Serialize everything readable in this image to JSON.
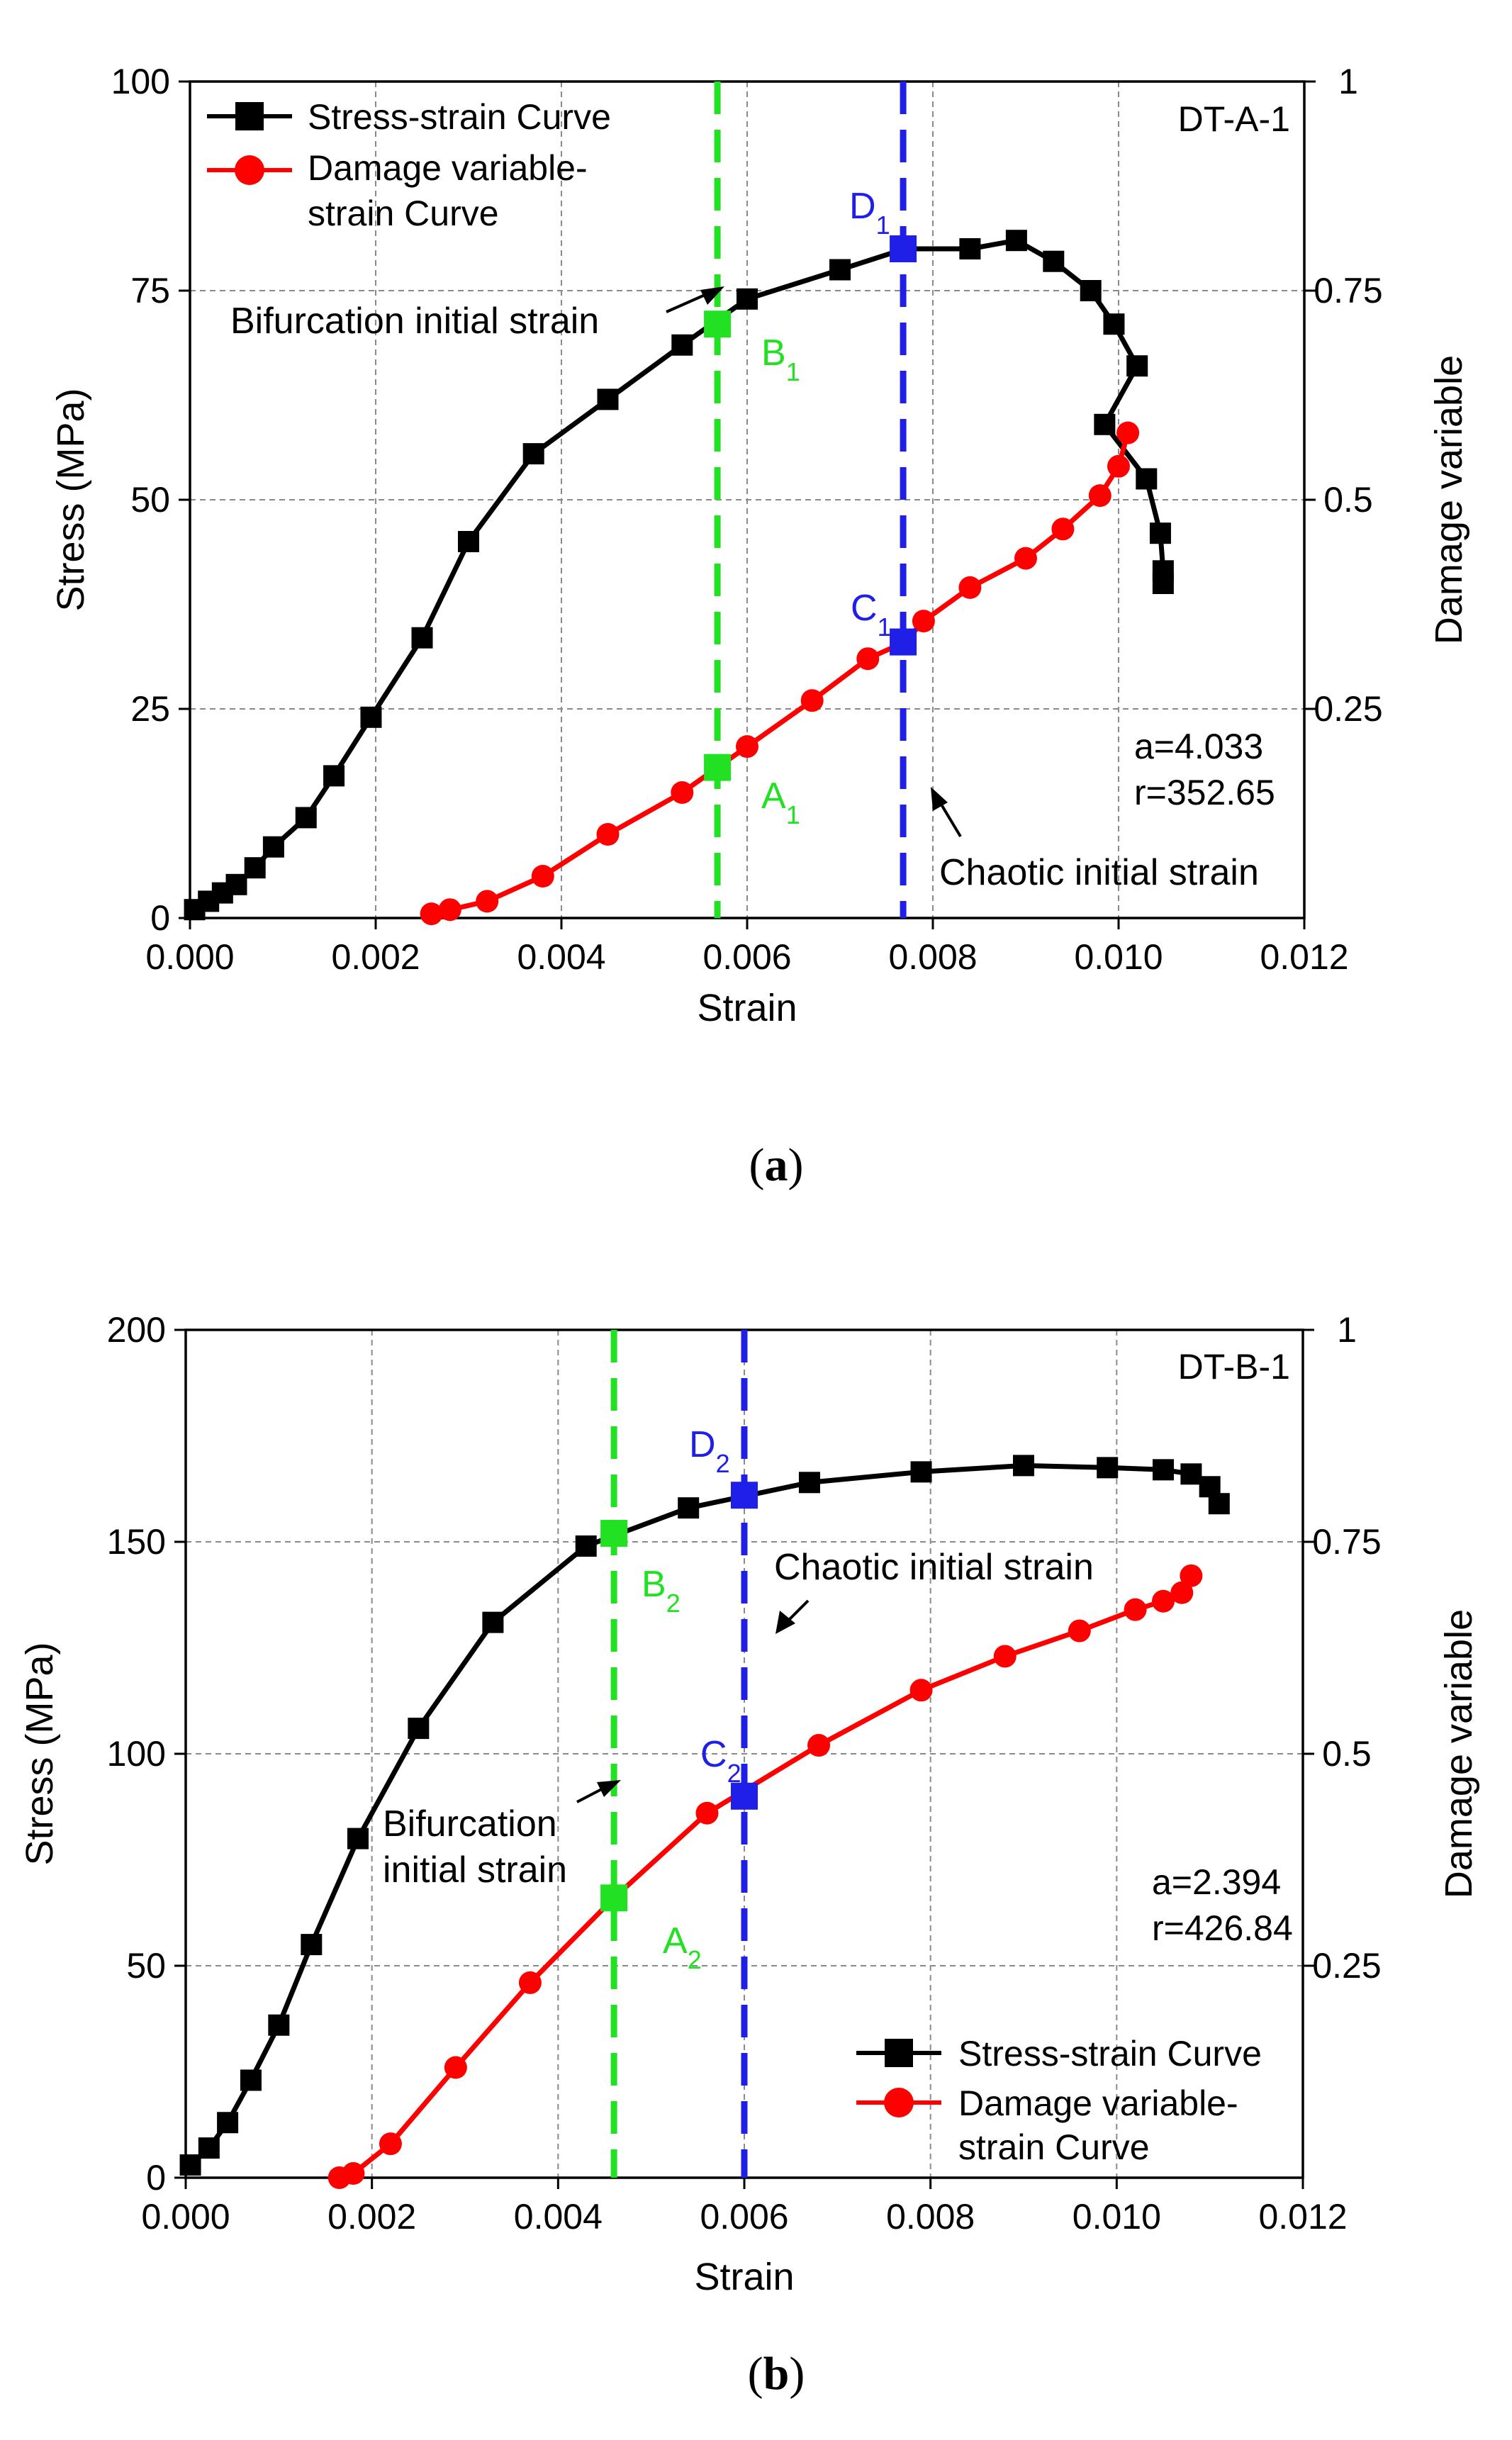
{
  "colors": {
    "stress": "#000000",
    "damage": "#ff0000",
    "bifurcation": "#22e022",
    "chaotic": "#1f1fe8"
  },
  "chart_data": [
    {
      "type": "line",
      "id": "a",
      "caption": "a",
      "label": "DT-A-1",
      "xlabel": "Strain",
      "ylabel": "Stress (MPa)",
      "y2label": "Damage variable",
      "xlim": [
        0,
        0.012
      ],
      "ylim": [
        0,
        100
      ],
      "y2lim": [
        0,
        1
      ],
      "xticks": [
        "0.000",
        "0.002",
        "0.004",
        "0.006",
        "0.008",
        "0.010",
        "0.012"
      ],
      "yticks": [
        "0",
        "25",
        "50",
        "75",
        "100"
      ],
      "y2ticks": [
        "0.25",
        "0.5",
        "0.75",
        "1"
      ],
      "legend_position": "top-left",
      "legend": {
        "stress": "Stress-strain Curve",
        "damage_line1": "Damage variable-",
        "damage_line2": "strain Curve"
      },
      "params": {
        "a": "a=4.033",
        "r": "r=352.65"
      },
      "annotations": {
        "bifurcation": "Bifurcation initial strain",
        "chaotic": "Chaotic initial strain",
        "A": "A",
        "A_sub": "1",
        "B": "B",
        "B_sub": "1",
        "C": "C",
        "C_sub": "1",
        "D": "D",
        "D_sub": "1"
      },
      "vlines": {
        "bifurcation": 0.00568,
        "chaotic": 0.00768
      },
      "points": {
        "A": [
          0.00568,
          0.18
        ],
        "B": [
          0.00568,
          71
        ],
        "C": [
          0.00768,
          0.33
        ],
        "D": [
          0.00768,
          80
        ]
      },
      "series": [
        {
          "name": "Stress-strain Curve",
          "axis": "left",
          "x": [
            5e-05,
            0.0002,
            0.00035,
            0.0005,
            0.0007,
            0.0009,
            0.00125,
            0.00155,
            0.00195,
            0.0025,
            0.003,
            0.0037,
            0.0045,
            0.0053,
            0.006,
            0.007,
            0.0077,
            0.0084,
            0.0089,
            0.0093,
            0.0097,
            0.00995,
            0.0102,
            0.00985,
            0.0103,
            0.01045,
            0.01048,
            0.01048
          ],
          "y": [
            1,
            2,
            3,
            4,
            6,
            8.5,
            12,
            17,
            24,
            33.5,
            45,
            55.5,
            62,
            68.5,
            74,
            77.5,
            80,
            80,
            81,
            78.5,
            75,
            71,
            66,
            59,
            52.5,
            46,
            41.5,
            40
          ]
        },
        {
          "name": "Damage variable-strain Curve",
          "axis": "right",
          "x": [
            0.0026,
            0.0028,
            0.0032,
            0.0038,
            0.0045,
            0.0053,
            0.006,
            0.0067,
            0.0073,
            0.0077,
            0.0079,
            0.0084,
            0.009,
            0.0094,
            0.0098,
            0.01,
            0.0101
          ],
          "y": [
            0.005,
            0.01,
            0.02,
            0.05,
            0.1,
            0.15,
            0.205,
            0.26,
            0.31,
            0.33,
            0.355,
            0.395,
            0.43,
            0.465,
            0.505,
            0.54,
            0.58
          ]
        }
      ]
    },
    {
      "type": "line",
      "id": "b",
      "caption": "b",
      "label": "DT-B-1",
      "xlabel": "Strain",
      "ylabel": "Stress (MPa)",
      "y2label": "Damage variable",
      "xlim": [
        0,
        0.012
      ],
      "ylim": [
        0,
        200
      ],
      "y2lim": [
        0,
        1
      ],
      "xticks": [
        "0.000",
        "0.002",
        "0.004",
        "0.006",
        "0.008",
        "0.010",
        "0.012"
      ],
      "yticks": [
        "0",
        "50",
        "100",
        "150",
        "200"
      ],
      "y2ticks": [
        "0.25",
        "0.5",
        "0.75",
        "1"
      ],
      "legend_position": "bottom-right",
      "legend": {
        "stress": "Stress-strain Curve",
        "damage_line1": "Damage variable-",
        "damage_line2": "strain Curve"
      },
      "params": {
        "a": "a=2.394",
        "r": "r=426.84"
      },
      "annotations": {
        "bifurcation_line1": "Bifurcation",
        "bifurcation_line2": "initial strain",
        "chaotic": "Chaotic initial strain",
        "A": "A",
        "A_sub": "2",
        "B": "B",
        "B_sub": "2",
        "C": "C",
        "C_sub": "2",
        "D": "D",
        "D_sub": "2"
      },
      "vlines": {
        "bifurcation": 0.0046,
        "chaotic": 0.006
      },
      "points": {
        "A": [
          0.0046,
          0.33
        ],
        "B": [
          0.0046,
          152
        ],
        "C": [
          0.006,
          0.45
        ],
        "D": [
          0.006,
          161
        ]
      },
      "series": [
        {
          "name": "Stress-strain Curve",
          "axis": "left",
          "x": [
            5e-05,
            0.00025,
            0.00045,
            0.0007,
            0.001,
            0.00135,
            0.00185,
            0.0025,
            0.0033,
            0.0043,
            0.0054,
            0.0067,
            0.0079,
            0.009,
            0.0099,
            0.0105,
            0.0108,
            0.011,
            0.0111
          ],
          "y": [
            3,
            7,
            13,
            23,
            36,
            55,
            80,
            106,
            131,
            149,
            158,
            164,
            166.5,
            168,
            167.5,
            167,
            166,
            163,
            159
          ]
        },
        {
          "name": "Damage variable-strain Curve",
          "axis": "right",
          "x": [
            0.00165,
            0.0018,
            0.0022,
            0.0029,
            0.0037,
            0.0046,
            0.0056,
            0.0068,
            0.0079,
            0.0088,
            0.0096,
            0.0102,
            0.0105,
            0.0107,
            0.0108
          ],
          "y": [
            0.0,
            0.005,
            0.04,
            0.13,
            0.23,
            0.33,
            0.43,
            0.51,
            0.575,
            0.615,
            0.645,
            0.67,
            0.68,
            0.69,
            0.71
          ]
        }
      ]
    }
  ]
}
